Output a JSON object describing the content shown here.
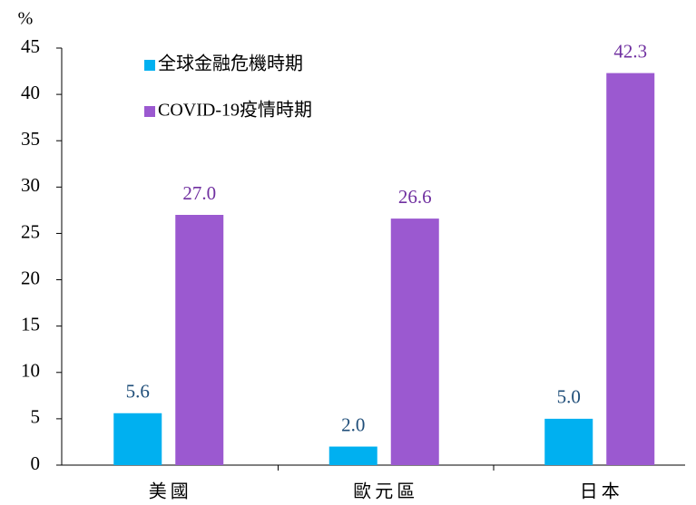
{
  "chart_data": {
    "type": "bar",
    "y_label": "%",
    "categories": [
      "美國",
      "歐元區",
      "日本"
    ],
    "series": [
      {
        "name": "全球金融危機時期",
        "color": "#00b0f0",
        "label_color": "#1f4e79",
        "values": [
          5.6,
          2.0,
          5.0
        ],
        "value_labels": [
          "5.6",
          "2.0",
          "5.0"
        ]
      },
      {
        "name": "COVID-19疫情時期",
        "color": "#9b59d0",
        "label_color": "#7030a0",
        "values": [
          27.0,
          26.6,
          42.3
        ],
        "value_labels": [
          "27.0",
          "26.6",
          "42.3"
        ]
      }
    ],
    "ylim": [
      0,
      45
    ],
    "yticks": [
      0,
      5,
      10,
      15,
      20,
      25,
      30,
      35,
      40,
      45
    ],
    "grid": false
  }
}
